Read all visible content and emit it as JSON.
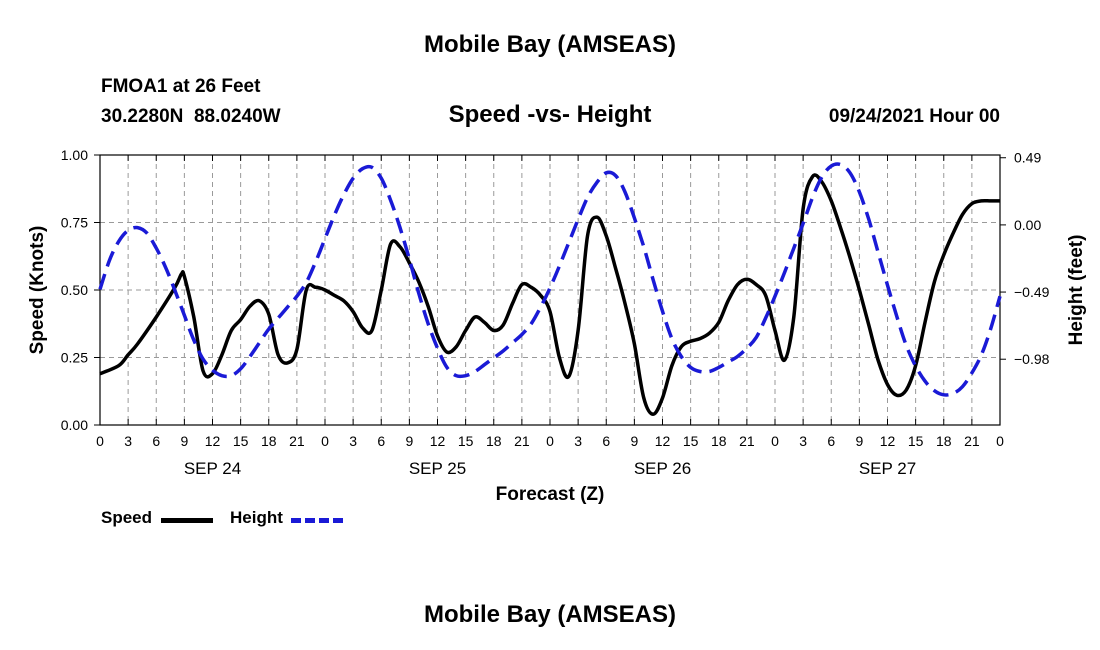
{
  "page": {
    "top_title": "Mobile Bay (AMSEAS)",
    "bottom_title": "Mobile Bay (AMSEAS)",
    "station": "FMOA1 at 26 Feet",
    "coords": "30.2280N  88.0240W",
    "subtitle": "Speed -vs- Height",
    "date": "09/24/2021 Hour 00"
  },
  "legend": {
    "speed_label": "Speed",
    "height_label": "Height"
  },
  "colors": {
    "speed": "#000000",
    "height": "#1a1ad6",
    "grid": "#9a9a9a"
  },
  "chart_data": {
    "type": "line",
    "xlabel": "Forecast (Z)",
    "ylabel_left": "Speed (Knots)",
    "ylabel_right": "Height (feet)",
    "grid": true,
    "xlim": [
      0,
      96
    ],
    "ylim_left": [
      0,
      1.0
    ],
    "ylim_right": [
      -1.46,
      0.51
    ],
    "x_tick_labels": [
      "0",
      "3",
      "6",
      "9",
      "12",
      "15",
      "18",
      "21",
      "0",
      "3",
      "6",
      "9",
      "12",
      "15",
      "18",
      "21",
      "0",
      "3",
      "6",
      "9",
      "12",
      "15",
      "18",
      "21",
      "0",
      "3",
      "6",
      "9",
      "12",
      "15",
      "18",
      "21",
      "0"
    ],
    "left_ticks": [
      {
        "value": 0.0,
        "label": "0.00"
      },
      {
        "value": 0.25,
        "label": "0.25"
      },
      {
        "value": 0.5,
        "label": "0.50"
      },
      {
        "value": 0.75,
        "label": "0.75"
      },
      {
        "value": 1.0,
        "label": "1.00"
      }
    ],
    "right_ticks": [
      {
        "value": 0.49,
        "label": "0.49"
      },
      {
        "value": 0.0,
        "label": "0.00"
      },
      {
        "value": -0.49,
        "label": "−0.49"
      },
      {
        "value": -0.98,
        "label": "−0.98"
      }
    ],
    "day_labels": [
      {
        "x": 12,
        "label": "SEP 24"
      },
      {
        "x": 36,
        "label": "SEP 25"
      },
      {
        "x": 60,
        "label": "SEP 26"
      },
      {
        "x": 84,
        "label": "SEP 27"
      }
    ],
    "series": [
      {
        "name": "Speed",
        "axis": "left",
        "style": "solid",
        "x": [
          0,
          2,
          3,
          4,
          6,
          8,
          8.7,
          9,
          10,
          11,
          12,
          13,
          14,
          15,
          16,
          17,
          18,
          19,
          20,
          21,
          22,
          23,
          24,
          25,
          26,
          27,
          28,
          29,
          30,
          31,
          32,
          33,
          34,
          35,
          36,
          37,
          38,
          39,
          40,
          41,
          42,
          43,
          44,
          45,
          46,
          47,
          48,
          49,
          50,
          51,
          52,
          53,
          54,
          55,
          56,
          57,
          58,
          59,
          60,
          61,
          62,
          63,
          64,
          65,
          66,
          67,
          68,
          69,
          70,
          71,
          72,
          73,
          74,
          75,
          76,
          77,
          78,
          79,
          80,
          81,
          82,
          83,
          84,
          85,
          86,
          87,
          88,
          89,
          90,
          91,
          92,
          93,
          94,
          95,
          96
        ],
        "values": [
          0.19,
          0.22,
          0.26,
          0.3,
          0.4,
          0.51,
          0.56,
          0.55,
          0.4,
          0.2,
          0.19,
          0.26,
          0.35,
          0.39,
          0.44,
          0.46,
          0.41,
          0.26,
          0.23,
          0.28,
          0.5,
          0.51,
          0.5,
          0.48,
          0.46,
          0.42,
          0.36,
          0.35,
          0.5,
          0.67,
          0.66,
          0.6,
          0.53,
          0.44,
          0.33,
          0.27,
          0.29,
          0.35,
          0.4,
          0.38,
          0.35,
          0.37,
          0.45,
          0.52,
          0.51,
          0.48,
          0.42,
          0.25,
          0.18,
          0.35,
          0.7,
          0.77,
          0.7,
          0.58,
          0.45,
          0.3,
          0.1,
          0.04,
          0.1,
          0.22,
          0.29,
          0.31,
          0.32,
          0.34,
          0.38,
          0.46,
          0.52,
          0.54,
          0.52,
          0.48,
          0.35,
          0.24,
          0.4,
          0.8,
          0.92,
          0.9,
          0.83,
          0.73,
          0.62,
          0.5,
          0.37,
          0.24,
          0.15,
          0.11,
          0.13,
          0.22,
          0.38,
          0.53,
          0.63,
          0.71,
          0.78,
          0.82,
          0.83,
          0.83,
          0.83
        ]
      },
      {
        "name": "Height",
        "axis": "right",
        "style": "dashed",
        "x": [
          0,
          1,
          2,
          3,
          4,
          5,
          6,
          7,
          8,
          9,
          10,
          11,
          12,
          13,
          14,
          15,
          16,
          17,
          18,
          19,
          20,
          21,
          22,
          23,
          24,
          25,
          26,
          27,
          28,
          29,
          30,
          31,
          32,
          33,
          34,
          35,
          36,
          37,
          38,
          39,
          40,
          41,
          42,
          43,
          44,
          45,
          46,
          47,
          48,
          49,
          50,
          51,
          52,
          53,
          54,
          55,
          56,
          57,
          58,
          59,
          60,
          61,
          62,
          63,
          64,
          65,
          66,
          67,
          68,
          69,
          70,
          71,
          72,
          73,
          74,
          75,
          76,
          77,
          78,
          79,
          80,
          81,
          82,
          83,
          84,
          85,
          86,
          87,
          88,
          89,
          90,
          91,
          92,
          93,
          94,
          95,
          96
        ],
        "values": [
          -0.47,
          -0.26,
          -0.12,
          -0.04,
          -0.02,
          -0.06,
          -0.17,
          -0.31,
          -0.48,
          -0.66,
          -0.84,
          -0.98,
          -1.06,
          -1.1,
          -1.1,
          -1.05,
          -0.96,
          -0.86,
          -0.76,
          -0.68,
          -0.6,
          -0.52,
          -0.42,
          -0.27,
          -0.1,
          0.07,
          0.22,
          0.34,
          0.41,
          0.42,
          0.34,
          0.18,
          -0.02,
          -0.25,
          -0.5,
          -0.72,
          -0.9,
          -1.04,
          -1.1,
          -1.1,
          -1.07,
          -1.02,
          -0.97,
          -0.92,
          -0.86,
          -0.8,
          -0.72,
          -0.6,
          -0.46,
          -0.3,
          -0.13,
          0.04,
          0.2,
          0.31,
          0.38,
          0.36,
          0.24,
          0.05,
          -0.16,
          -0.4,
          -0.63,
          -0.83,
          -0.96,
          -1.04,
          -1.07,
          -1.07,
          -1.04,
          -1.0,
          -0.96,
          -0.9,
          -0.82,
          -0.68,
          -0.52,
          -0.35,
          -0.17,
          0.01,
          0.2,
          0.35,
          0.43,
          0.44,
          0.38,
          0.24,
          0.04,
          -0.2,
          -0.44,
          -0.67,
          -0.88,
          -1.03,
          -1.14,
          -1.21,
          -1.24,
          -1.23,
          -1.18,
          -1.08,
          -0.95,
          -0.76,
          -0.52
        ]
      }
    ]
  }
}
